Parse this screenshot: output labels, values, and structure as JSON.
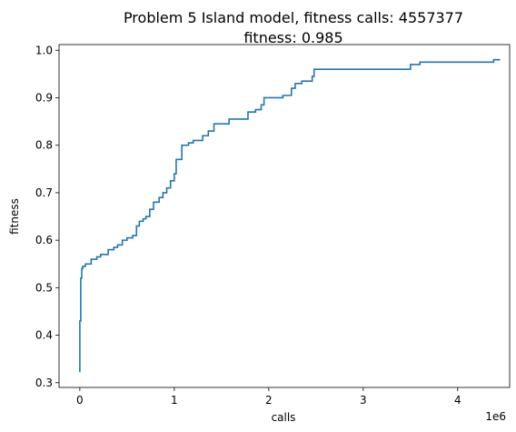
{
  "chart_data": {
    "type": "line",
    "title_line1": "Problem 5 Island model, fitness calls: 4557377",
    "title_line2": "fitness: 0.985",
    "xlabel": "calls",
    "ylabel": "fitness",
    "x_offset_label": "1e6",
    "xlim": [
      -0.22,
      4.55
    ],
    "ylim": [
      0.29,
      1.012
    ],
    "x_ticks": [
      {
        "value": 0,
        "label": "0"
      },
      {
        "value": 1,
        "label": "1"
      },
      {
        "value": 2,
        "label": "2"
      },
      {
        "value": 3,
        "label": "3"
      },
      {
        "value": 4,
        "label": "4"
      }
    ],
    "y_ticks": [
      {
        "value": 0.3,
        "label": "0.3"
      },
      {
        "value": 0.4,
        "label": "0.4"
      },
      {
        "value": 0.5,
        "label": "0.5"
      },
      {
        "value": 0.6,
        "label": "0.6"
      },
      {
        "value": 0.7,
        "label": "0.7"
      },
      {
        "value": 0.8,
        "label": "0.8"
      },
      {
        "value": 0.9,
        "label": "0.9"
      },
      {
        "value": 1.0,
        "label": "1.0"
      }
    ],
    "grid": false,
    "series": [
      {
        "color": "#1f77b4",
        "step": true,
        "points": [
          [
            0.0,
            0.322
          ],
          [
            0.0,
            0.43
          ],
          [
            0.01,
            0.45
          ],
          [
            0.01,
            0.52
          ],
          [
            0.02,
            0.54
          ],
          [
            0.03,
            0.545
          ],
          [
            0.06,
            0.55
          ],
          [
            0.12,
            0.56
          ],
          [
            0.18,
            0.565
          ],
          [
            0.22,
            0.57
          ],
          [
            0.3,
            0.58
          ],
          [
            0.36,
            0.585
          ],
          [
            0.4,
            0.59
          ],
          [
            0.45,
            0.6
          ],
          [
            0.5,
            0.605
          ],
          [
            0.56,
            0.61
          ],
          [
            0.6,
            0.63
          ],
          [
            0.63,
            0.64
          ],
          [
            0.67,
            0.645
          ],
          [
            0.7,
            0.65
          ],
          [
            0.74,
            0.665
          ],
          [
            0.78,
            0.68
          ],
          [
            0.84,
            0.69
          ],
          [
            0.88,
            0.7
          ],
          [
            0.92,
            0.71
          ],
          [
            0.96,
            0.725
          ],
          [
            1.0,
            0.74
          ],
          [
            1.02,
            0.77
          ],
          [
            1.08,
            0.8
          ],
          [
            1.15,
            0.805
          ],
          [
            1.2,
            0.81
          ],
          [
            1.3,
            0.82
          ],
          [
            1.36,
            0.83
          ],
          [
            1.42,
            0.845
          ],
          [
            1.58,
            0.855
          ],
          [
            1.78,
            0.87
          ],
          [
            1.86,
            0.875
          ],
          [
            1.92,
            0.885
          ],
          [
            1.95,
            0.9
          ],
          [
            2.15,
            0.905
          ],
          [
            2.24,
            0.92
          ],
          [
            2.28,
            0.93
          ],
          [
            2.35,
            0.935
          ],
          [
            2.46,
            0.945
          ],
          [
            2.48,
            0.96
          ],
          [
            3.3,
            0.96
          ],
          [
            3.5,
            0.97
          ],
          [
            3.6,
            0.975
          ],
          [
            4.38,
            0.98
          ],
          [
            4.45,
            0.98
          ]
        ]
      }
    ]
  }
}
